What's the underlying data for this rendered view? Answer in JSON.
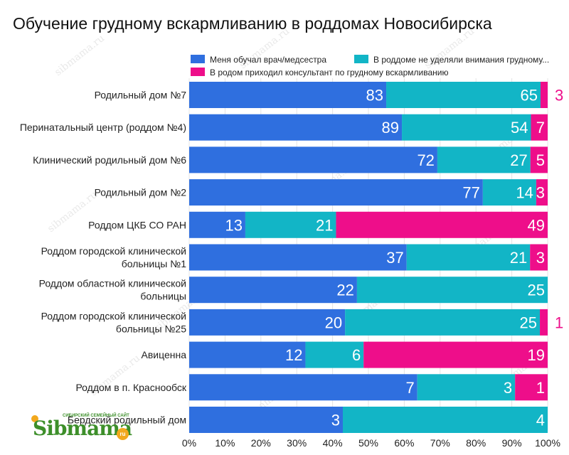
{
  "title": "Обучение грудному вскармливанию в роддомах Новосибирска",
  "watermark_text": "sibmama.ru",
  "logo": {
    "text": "Sibmama",
    "subtitle": "СИБИРСКИЙ СЕМЕЙНЫЙ САЙТ",
    "suffix": "ru"
  },
  "chart_data": {
    "type": "bar",
    "orientation": "horizontal",
    "stacked": "percent",
    "title": "Обучение грудному вскармливанию в роддомах Новосибирска",
    "categories": [
      "Родильный дом №7",
      "Перинатальный центр (роддом №4)",
      "Клинический родильный дом №6",
      "Родильный дом №2",
      "Роддом ЦКБ СО РАН",
      "Роддом городской клинической больницы №1",
      "Роддом областной клинической больницы",
      "Роддом городской клинической больницы №25",
      "Авиценна",
      "Роддом в п. Краснообск",
      "Бердский родильный дом"
    ],
    "series": [
      {
        "name": "Меня обучал врач/медсестра",
        "color": "#2f6fdf",
        "values": [
          83,
          89,
          72,
          77,
          13,
          37,
          22,
          20,
          12,
          7,
          3
        ]
      },
      {
        "name": "В роддоме не уделяли внимания грудному...",
        "color": "#12b5c6",
        "values": [
          65,
          54,
          27,
          14,
          21,
          21,
          25,
          25,
          6,
          3,
          4
        ]
      },
      {
        "name": "В родом приходил консультант по грудному вскармливанию",
        "color": "#ee0e8a",
        "values": [
          3,
          7,
          5,
          3,
          49,
          3,
          0,
          1,
          19,
          1,
          0
        ]
      }
    ],
    "xaxis_ticks": [
      "0%",
      "10%",
      "20%",
      "30%",
      "40%",
      "50%",
      "60%",
      "70%",
      "80%",
      "90%",
      "100%"
    ],
    "xlim": [
      0,
      100
    ],
    "legend_position": "top"
  }
}
